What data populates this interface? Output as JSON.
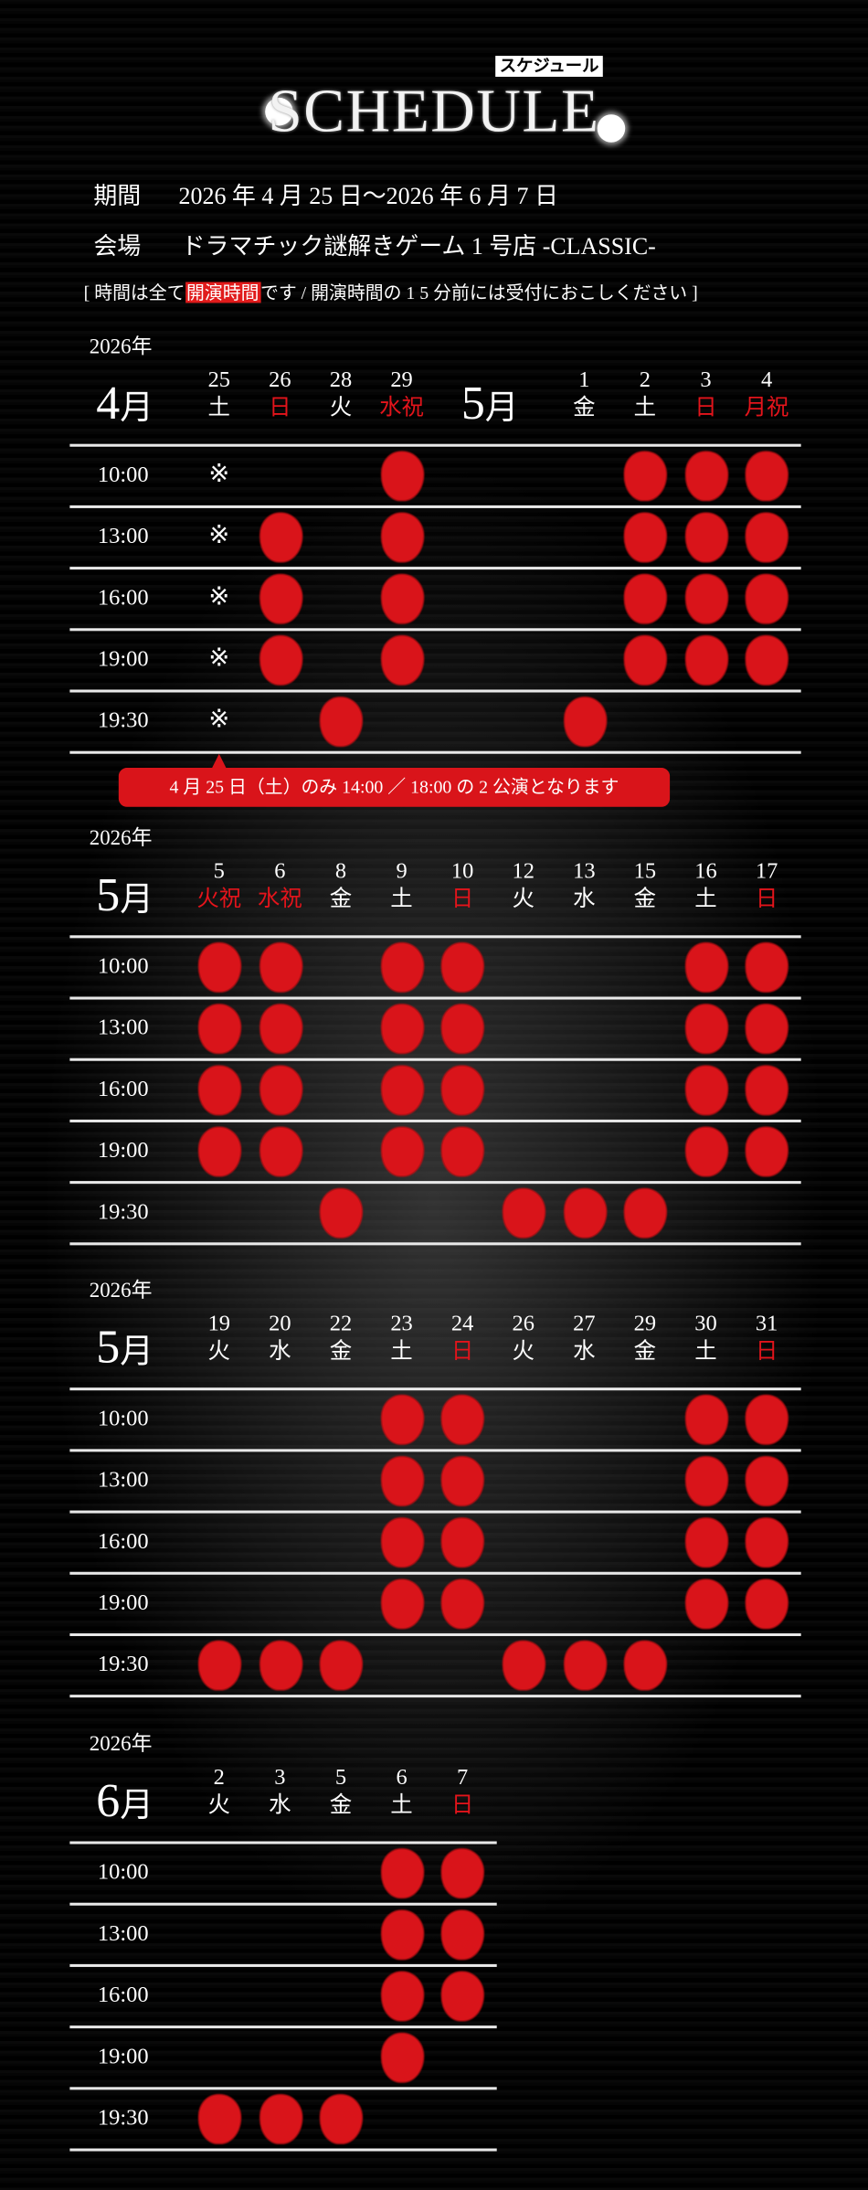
{
  "header": {
    "title": "SCHEDULE",
    "badge": "スケジュール"
  },
  "info": {
    "period_label": "期間",
    "period_value": "2026 年 4 月 25 日〜2026 年 6 月 7 日",
    "venue_label": "会場",
    "venue_value": "ドラマチック謎解きゲーム 1 号店 -CLASSIC-",
    "note_open": "[ 時間は全て",
    "note_highlight": "開演時間",
    "note_rest": "です / 開演時間の 1 5 分前には受付におこしください ]"
  },
  "colors": {
    "accent": "#d9141a",
    "holiday": "#e3141b",
    "text": "#ffffff"
  },
  "callout": "4 月 25 日（土）のみ 14:00 ／ 18:00 の 2 公演となります",
  "blocks": [
    {
      "year": "2026年",
      "months": [
        {
          "num": "4",
          "suffix": "月",
          "col": -1.4
        },
        {
          "num": "5",
          "suffix": "月",
          "col": 4.6
        }
      ],
      "columns": [
        {
          "c": 0,
          "day": "25",
          "wd": "土",
          "holiday": false
        },
        {
          "c": 1,
          "day": "26",
          "wd": "日",
          "holiday": true
        },
        {
          "c": 2,
          "day": "28",
          "wd": "火",
          "holiday": false
        },
        {
          "c": 3,
          "day": "29",
          "wd": "水祝",
          "holiday": true
        },
        {
          "c": 6,
          "day": "1",
          "wd": "金",
          "holiday": false
        },
        {
          "c": 7,
          "day": "2",
          "wd": "土",
          "holiday": false
        },
        {
          "c": 8,
          "day": "3",
          "wd": "日",
          "holiday": true
        },
        {
          "c": 9,
          "day": "4",
          "wd": "月祝",
          "holiday": true
        }
      ],
      "rows": [
        {
          "time": "10:00",
          "marks": [
            "※",
            "",
            "",
            "●",
            "",
            "●",
            "●",
            "●"
          ]
        },
        {
          "time": "13:00",
          "marks": [
            "※",
            "●",
            "",
            "●",
            "",
            "●",
            "●",
            "●"
          ]
        },
        {
          "time": "16:00",
          "marks": [
            "※",
            "●",
            "",
            "●",
            "",
            "●",
            "●",
            "●"
          ]
        },
        {
          "time": "19:00",
          "marks": [
            "※",
            "●",
            "",
            "●",
            "",
            "●",
            "●",
            "●"
          ]
        },
        {
          "time": "19:30",
          "marks": [
            "※",
            "",
            "●",
            "",
            "●",
            "",
            "",
            ""
          ]
        }
      ]
    },
    {
      "year": "2026年",
      "months": [
        {
          "num": "5",
          "suffix": "月",
          "col": -1.4
        }
      ],
      "columns": [
        {
          "c": 0,
          "day": "5",
          "wd": "火祝",
          "holiday": true
        },
        {
          "c": 1,
          "day": "6",
          "wd": "水祝",
          "holiday": true
        },
        {
          "c": 2,
          "day": "8",
          "wd": "金",
          "holiday": false
        },
        {
          "c": 3,
          "day": "9",
          "wd": "土",
          "holiday": false
        },
        {
          "c": 4,
          "day": "10",
          "wd": "日",
          "holiday": true
        },
        {
          "c": 5,
          "day": "12",
          "wd": "火",
          "holiday": false
        },
        {
          "c": 6,
          "day": "13",
          "wd": "水",
          "holiday": false
        },
        {
          "c": 7,
          "day": "15",
          "wd": "金",
          "holiday": false
        },
        {
          "c": 8,
          "day": "16",
          "wd": "土",
          "holiday": false
        },
        {
          "c": 9,
          "day": "17",
          "wd": "日",
          "holiday": true
        }
      ],
      "rows": [
        {
          "time": "10:00",
          "marks": [
            "●",
            "●",
            "",
            "●",
            "●",
            "",
            "",
            "",
            "●",
            "●"
          ]
        },
        {
          "time": "13:00",
          "marks": [
            "●",
            "●",
            "",
            "●",
            "●",
            "",
            "",
            "",
            "●",
            "●"
          ]
        },
        {
          "time": "16:00",
          "marks": [
            "●",
            "●",
            "",
            "●",
            "●",
            "",
            "",
            "",
            "●",
            "●"
          ]
        },
        {
          "time": "19:00",
          "marks": [
            "●",
            "●",
            "",
            "●",
            "●",
            "",
            "",
            "",
            "●",
            "●"
          ]
        },
        {
          "time": "19:30",
          "marks": [
            "",
            "",
            "●",
            "",
            "",
            "●",
            "●",
            "●",
            "",
            ""
          ]
        }
      ]
    },
    {
      "year": "2026年",
      "months": [
        {
          "num": "5",
          "suffix": "月",
          "col": -1.4
        }
      ],
      "columns": [
        {
          "c": 0,
          "day": "19",
          "wd": "火",
          "holiday": false
        },
        {
          "c": 1,
          "day": "20",
          "wd": "水",
          "holiday": false
        },
        {
          "c": 2,
          "day": "22",
          "wd": "金",
          "holiday": false
        },
        {
          "c": 3,
          "day": "23",
          "wd": "土",
          "holiday": false
        },
        {
          "c": 4,
          "day": "24",
          "wd": "日",
          "holiday": true
        },
        {
          "c": 5,
          "day": "26",
          "wd": "火",
          "holiday": false
        },
        {
          "c": 6,
          "day": "27",
          "wd": "水",
          "holiday": false
        },
        {
          "c": 7,
          "day": "29",
          "wd": "金",
          "holiday": false
        },
        {
          "c": 8,
          "day": "30",
          "wd": "土",
          "holiday": false
        },
        {
          "c": 9,
          "day": "31",
          "wd": "日",
          "holiday": true
        }
      ],
      "rows": [
        {
          "time": "10:00",
          "marks": [
            "",
            "",
            "",
            "●",
            "●",
            "",
            "",
            "",
            "●",
            "●"
          ]
        },
        {
          "time": "13:00",
          "marks": [
            "",
            "",
            "",
            "●",
            "●",
            "",
            "",
            "",
            "●",
            "●"
          ]
        },
        {
          "time": "16:00",
          "marks": [
            "",
            "",
            "",
            "●",
            "●",
            "",
            "",
            "",
            "●",
            "●"
          ]
        },
        {
          "time": "19:00",
          "marks": [
            "",
            "",
            "",
            "●",
            "●",
            "",
            "",
            "",
            "●",
            "●"
          ]
        },
        {
          "time": "19:30",
          "marks": [
            "●",
            "●",
            "●",
            "",
            "",
            "●",
            "●",
            "●",
            "",
            ""
          ]
        }
      ]
    },
    {
      "year": "2026年",
      "months": [
        {
          "num": "6",
          "suffix": "月",
          "col": -1.4
        }
      ],
      "columns": [
        {
          "c": 0,
          "day": "2",
          "wd": "火",
          "holiday": false
        },
        {
          "c": 1,
          "day": "3",
          "wd": "水",
          "holiday": false
        },
        {
          "c": 2,
          "day": "5",
          "wd": "金",
          "holiday": false
        },
        {
          "c": 3,
          "day": "6",
          "wd": "土",
          "holiday": false
        },
        {
          "c": 4,
          "day": "7",
          "wd": "日",
          "holiday": true
        }
      ],
      "rows": [
        {
          "time": "10:00",
          "marks": [
            "",
            "",
            "",
            "●",
            "●"
          ]
        },
        {
          "time": "13:00",
          "marks": [
            "",
            "",
            "",
            "●",
            "●"
          ]
        },
        {
          "time": "16:00",
          "marks": [
            "",
            "",
            "",
            "●",
            "●"
          ]
        },
        {
          "time": "19:00",
          "marks": [
            "",
            "",
            "",
            "●",
            ""
          ]
        },
        {
          "time": "19:30",
          "marks": [
            "●",
            "●",
            "●",
            "",
            ""
          ]
        }
      ]
    }
  ]
}
